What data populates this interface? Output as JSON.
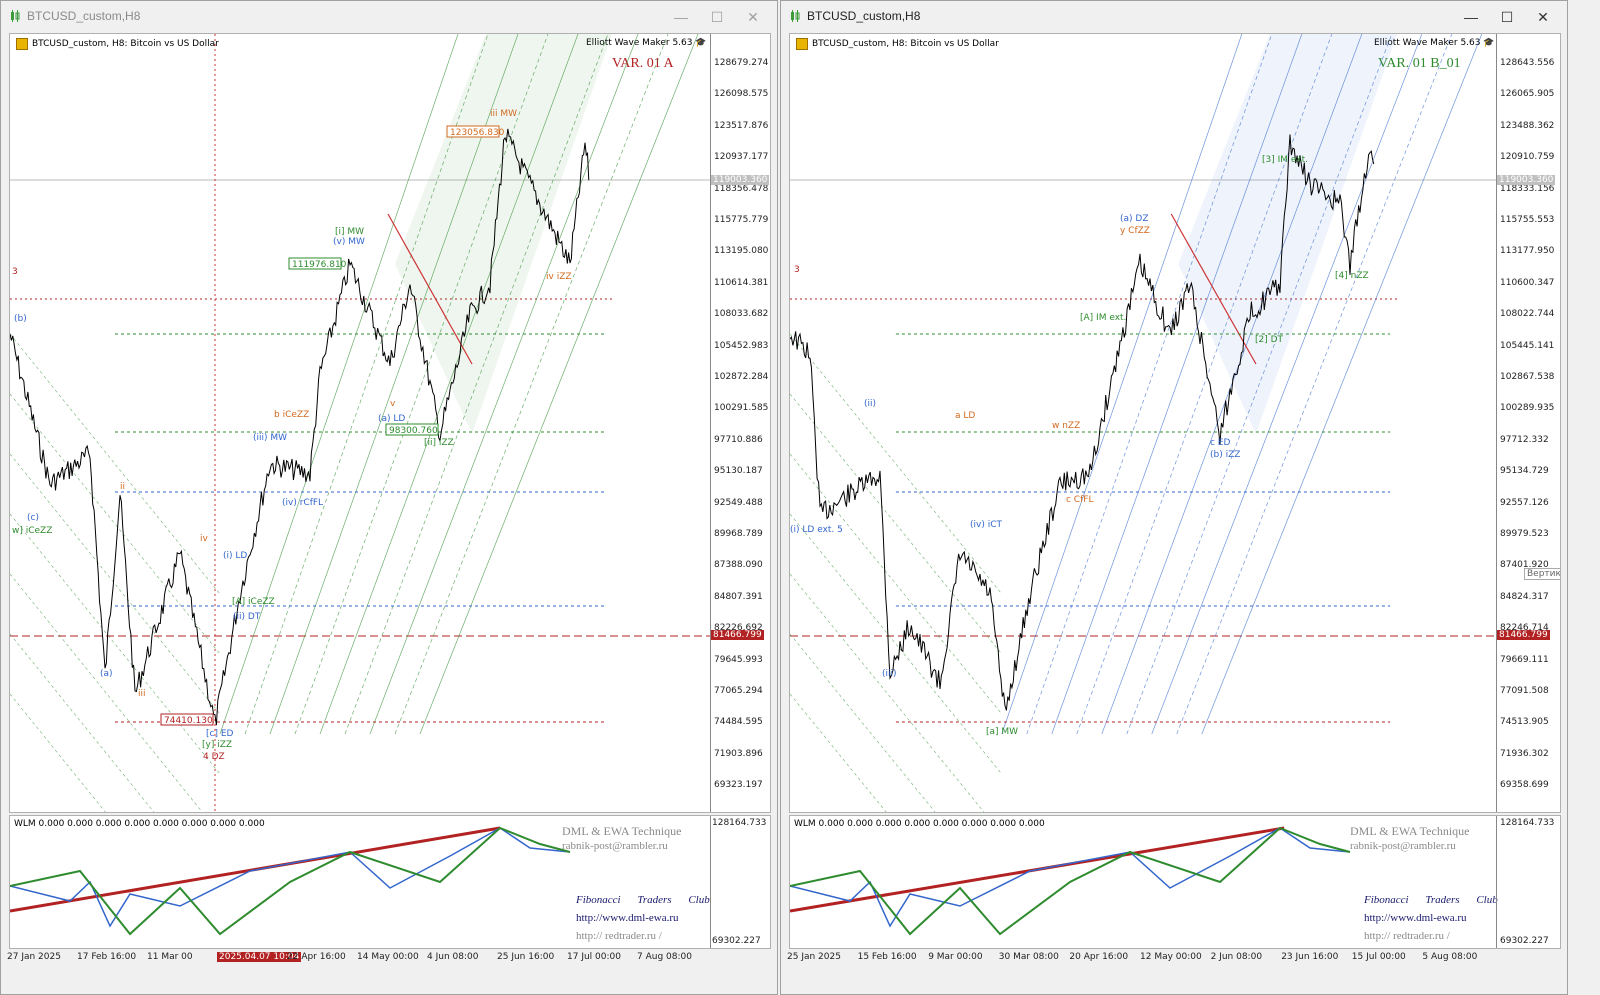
{
  "colors": {
    "bull": "#2e8b2e",
    "bear": "#cc3333",
    "blue": "#3366cc",
    "orange": "#d2691e",
    "darkred": "#b22222",
    "pricebg": "#b22222"
  },
  "left": {
    "title": "BTCUSD_custom,H8",
    "symbol_line": "BTCUSD_custom, H8:  Bitcoin vs US Dollar",
    "ewm": "Elliott Wave Maker 5.63",
    "variant": "VAR. 01 A",
    "price_axis": [
      "128679.274",
      "126098.575",
      "123517.876",
      "120937.177",
      "118356.478",
      "115775.779",
      "113195.080",
      "110614.381",
      "108033.682",
      "105452.983",
      "102872.284",
      "100291.585",
      "97710.886",
      "95130.187",
      "92549.488",
      "89968.789",
      "87388.090",
      "84807.391",
      "82226.692",
      "79645.993",
      "77065.294",
      "74484.595",
      "71903.896",
      "69323.197"
    ],
    "current_price": "119003.360",
    "red_price": "81466.799",
    "time_axis": [
      "27 Jan 2025",
      "17 Feb 16:00",
      "11 Mar 00",
      "2025.04.07 10:04",
      "22 Apr 16:00",
      "14 May 00:00",
      "4 Jun 08:00",
      "25 Jun 16:00",
      "17 Jul 00:00",
      "7 Aug 08:00"
    ],
    "price_boxes": [
      "123056.830",
      "111976.810",
      "98300.760",
      "74410.130"
    ],
    "wave_labels": [
      "iii MW",
      "[i] MW",
      "(v) MW",
      "(iii) MW",
      "(a) LD",
      "[ii] iZZ",
      "b iCeZZ",
      "(iv) rCfFL",
      "iv iZZ",
      "w] iCeZZ",
      "[c] ED",
      "[y] iZZ",
      "4 DZ",
      "(i) LD",
      "(ii) DT",
      "[A] iCeZZ",
      "3",
      "(b)",
      "(c)",
      "(a)",
      "ii",
      "iii",
      "iv",
      "v"
    ],
    "ind_axis_top": "128164.733",
    "ind_axis_bottom": "69302.227",
    "wlm": "WLM 0.000 0.000 0.000 0.000 0.000 0.000 0.000 0.000",
    "dml": "DML & EWA Technique",
    "email": "rabnik-post@rambler.ru",
    "fib": "Fibonacci Traders Club",
    "url1": "http://www.dml-ewa.ru",
    "url2": "http:// redtrader.ru /"
  },
  "right": {
    "title": "BTCUSD_custom,H8",
    "symbol_line": "BTCUSD_custom, H8:  Bitcoin vs US Dollar",
    "ewm": "Elliott Wave Maker 5.63",
    "variant": "VAR. 01 B_01",
    "price_axis": [
      "128643.556",
      "126065.905",
      "123488.362",
      "120910.759",
      "118333.156",
      "115755.553",
      "113177.950",
      "110600.347",
      "108022.744",
      "105445.141",
      "102867.538",
      "100289.935",
      "97712.332",
      "95134.729",
      "92557.126",
      "89979.523",
      "87401.920",
      "84824.317",
      "82246.714",
      "79669.111",
      "77091.508",
      "74513.905",
      "71936.302",
      "69358.699"
    ],
    "current_price": "119003.360",
    "red_price": "81466.799",
    "tooltip": "Вертика",
    "time_axis": [
      "25 Jan 2025",
      "15 Feb 16:00",
      "9 Mar 00:00",
      "30 Mar 08:00",
      "20 Apr 16:00",
      "12 May 00:00",
      "2 Jun 08:00",
      "23 Jun 16:00",
      "15 Jul 00:00",
      "5 Aug 08:00"
    ],
    "wave_labels": [
      "(a) DZ",
      "y CfZZ",
      "a LD",
      "c ED",
      "(b) iZZ",
      "(i) LD ext. 5",
      "(iv) iCT",
      "[a] MW",
      "(ii)",
      "(iii)",
      "[4] nZZ",
      "[2] DT",
      "[3] IM ext.",
      "[A] IM ext.",
      "w nZZ",
      "c CfFL",
      "3"
    ],
    "ind_axis_top": "128164.733",
    "ind_axis_bottom": "69302.227",
    "wlm": "WLM 0.000 0.000 0.000 0.000 0.000 0.000 0.000 0.000",
    "dml": "DML & EWA Technique",
    "email": "rabnik-post@rambler.ru",
    "fib": "Fibonacci Traders Club",
    "url1": "http://www.dml-ewa.ru",
    "url2": "http:// redtrader.ru /"
  }
}
